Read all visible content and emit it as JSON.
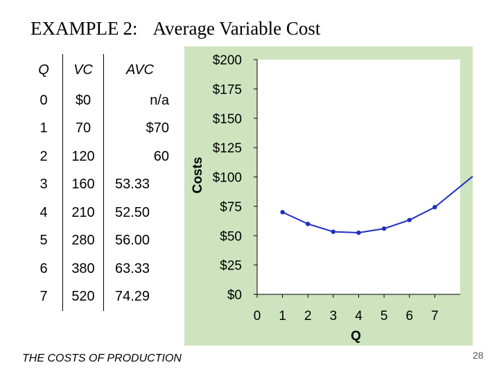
{
  "slide": {
    "title_prefix": "EXAMPLE",
    "title_num": "2:",
    "title_rest": "Average Variable Cost",
    "footer": "THE COSTS OF PRODUCTION",
    "page_number": "28"
  },
  "table": {
    "headers": [
      "Q",
      "VC",
      "AVC"
    ],
    "rows": [
      [
        "0",
        "$0",
        "n/a"
      ],
      [
        "1",
        "70",
        "$70"
      ],
      [
        "2",
        "120",
        "60"
      ],
      [
        "3",
        "160",
        "53.33"
      ],
      [
        "4",
        "210",
        "52.50"
      ],
      [
        "5",
        "280",
        "56.00"
      ],
      [
        "6",
        "380",
        "63.33"
      ],
      [
        "7",
        "520",
        "74.29"
      ]
    ]
  },
  "chart_data": {
    "type": "line",
    "title": "",
    "xlabel": "Q",
    "ylabel": "Costs",
    "x": [
      1,
      2,
      3,
      4,
      5,
      6,
      7
    ],
    "series": [
      {
        "values": [
          70,
          60,
          53.33,
          52.5,
          56,
          63.33,
          74.29
        ]
      }
    ],
    "xlim": [
      0,
      8
    ],
    "ylim": [
      0,
      200
    ],
    "xticks": [
      "0",
      "1",
      "2",
      "3",
      "4",
      "5",
      "6",
      "7"
    ],
    "yticks": [
      "$0",
      "$25",
      "$50",
      "$75",
      "$100",
      "$125",
      "$150",
      "$175",
      "$200"
    ],
    "line_color": "#1f2fbf",
    "grid": false,
    "legend": "none"
  }
}
